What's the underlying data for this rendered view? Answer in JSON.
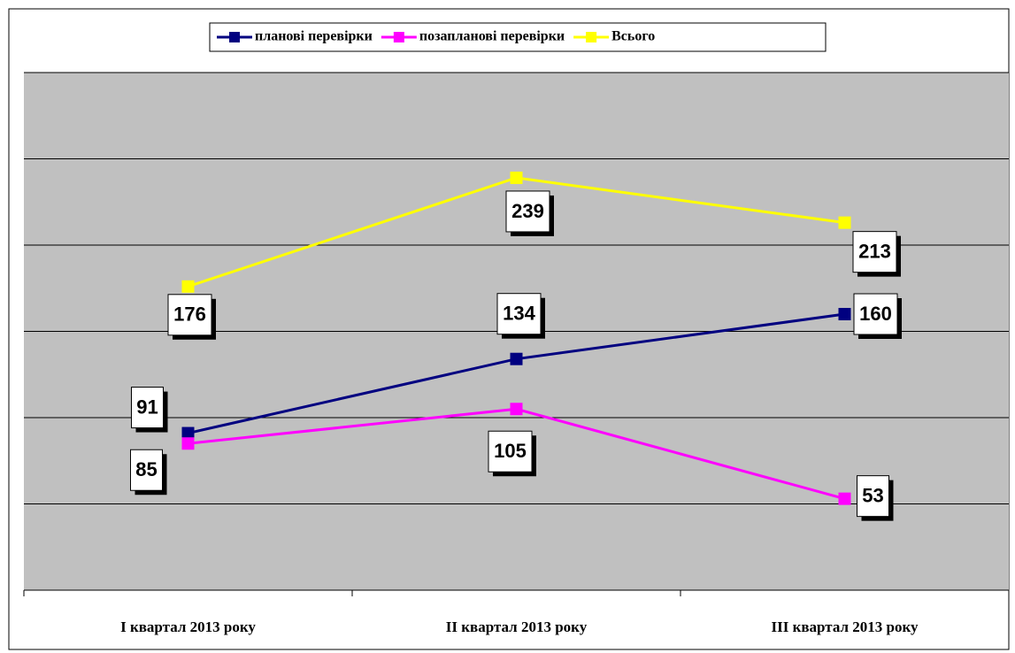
{
  "chart_data": {
    "type": "line",
    "categories": [
      "І квартал 2013 року",
      "ІІ квартал 2013 року",
      "ІІІ квартал 2013 року"
    ],
    "series": [
      {
        "name": "планові перевірки",
        "color": "#000080",
        "values": [
          91,
          134,
          160
        ]
      },
      {
        "name": "позапланові перевірки",
        "color": "#ff00ff",
        "values": [
          85,
          105,
          53
        ]
      },
      {
        "name": "Всього",
        "color": "#ffff00",
        "values": [
          176,
          239,
          213
        ]
      }
    ],
    "ylim": [
      0,
      300
    ],
    "yticks": [
      0,
      50,
      100,
      150,
      200,
      250,
      300
    ],
    "grid": true,
    "legend": "top"
  }
}
